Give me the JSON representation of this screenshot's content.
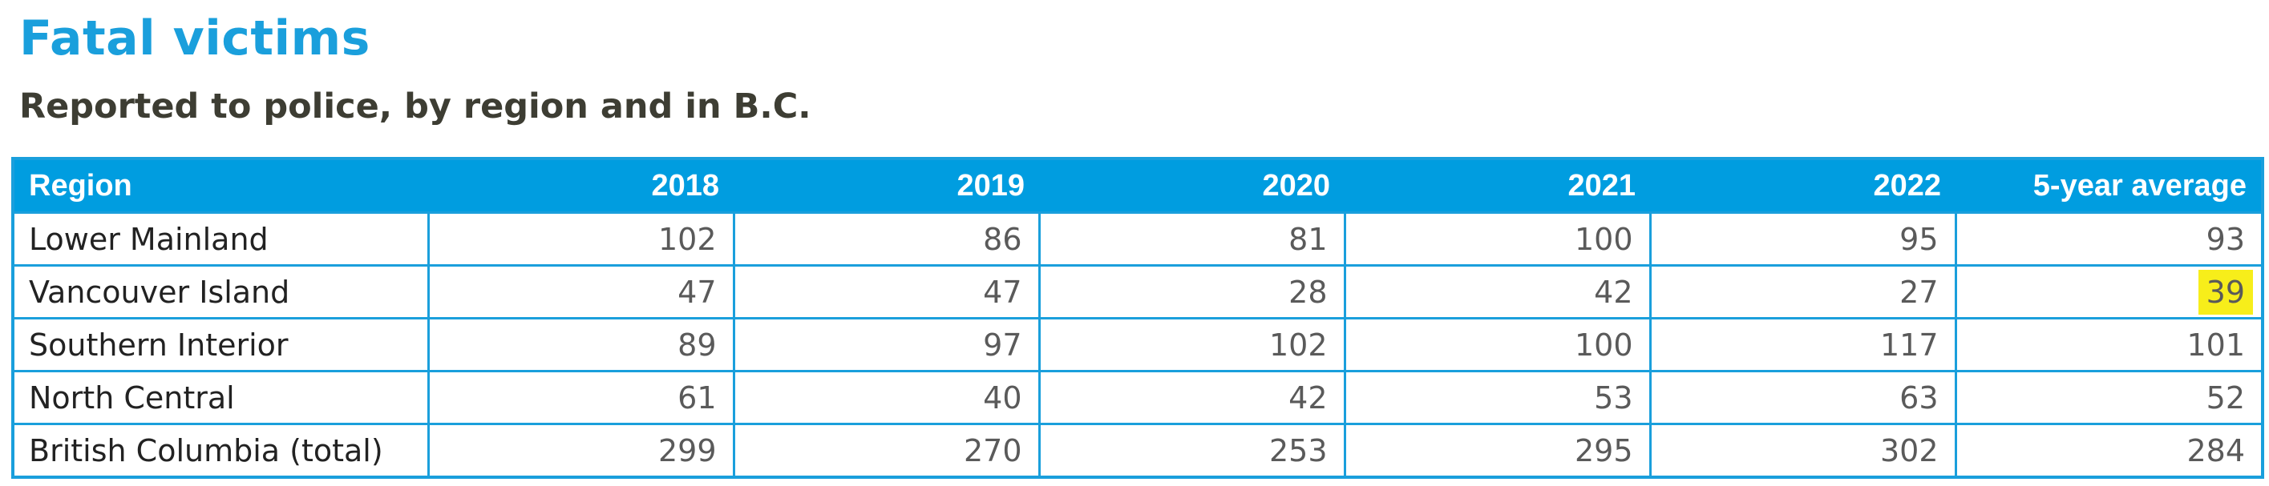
{
  "title": "Fatal victims",
  "subtitle": "Reported to police, by region and in B.C.",
  "colors": {
    "title": "#1a9fdc",
    "subtitle": "#3d3d33",
    "header_bg": "#009de0",
    "grid": "#1a9fdc",
    "highlight": "#f7ee1a"
  },
  "table": {
    "headers": [
      "Region",
      "2018",
      "2019",
      "2020",
      "2021",
      "2022",
      "5-year average"
    ],
    "rows": [
      {
        "region": "Lower Mainland",
        "values": [
          "102",
          "86",
          "81",
          "100",
          "95",
          "93"
        ]
      },
      {
        "region": "Vancouver Island",
        "values": [
          "47",
          "47",
          "28",
          "42",
          "27",
          "39"
        ]
      },
      {
        "region": "Southern Interior",
        "values": [
          "89",
          "97",
          "102",
          "100",
          "117",
          "101"
        ]
      },
      {
        "region": "North Central",
        "values": [
          "61",
          "40",
          "42",
          "53",
          "63",
          "52"
        ]
      },
      {
        "region": "British Columbia (total)",
        "values": [
          "299",
          "270",
          "253",
          "295",
          "302",
          "284"
        ]
      }
    ],
    "highlighted_cell": {
      "row": 1,
      "column": "5-year average"
    }
  }
}
